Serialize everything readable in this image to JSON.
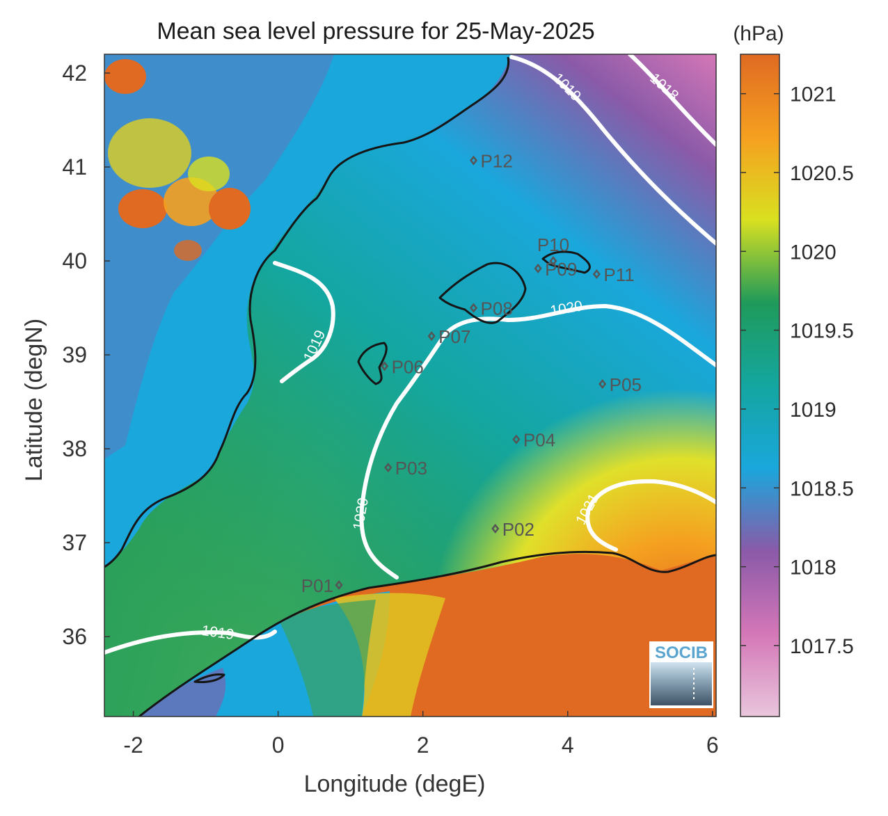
{
  "title": "Mean sea level pressure for 25-May-2025",
  "units_label": "(hPa)",
  "xlabel": "Longitude (degE)",
  "ylabel": "Latitude (degN)",
  "x_ticks": [
    "-2",
    "0",
    "2",
    "4",
    "6"
  ],
  "y_ticks": [
    "42",
    "41",
    "40",
    "39",
    "38",
    "37",
    "36"
  ],
  "colorbar": {
    "ticks": [
      "1021",
      "1020.5",
      "1020",
      "1019.5",
      "1019",
      "1018.5",
      "1018",
      "1017.5"
    ],
    "range_hpa": [
      1017.05,
      1021.25
    ],
    "colors": [
      "#e9c6dc",
      "#d477b7",
      "#8a5aa8",
      "#1aa7dc",
      "#14a6a0",
      "#1f9a5a",
      "#d9e020",
      "#f5a020",
      "#e06a22"
    ]
  },
  "logo": "SOCIB",
  "points": [
    {
      "name": "P01",
      "lon": 0.84,
      "lat": 36.55
    },
    {
      "name": "P02",
      "lon": 3.0,
      "lat": 37.15
    },
    {
      "name": "P03",
      "lon": 1.52,
      "lat": 37.8
    },
    {
      "name": "P04",
      "lon": 3.29,
      "lat": 38.1
    },
    {
      "name": "P05",
      "lon": 4.48,
      "lat": 38.69
    },
    {
      "name": "P06",
      "lon": 1.47,
      "lat": 38.88
    },
    {
      "name": "P07",
      "lon": 2.12,
      "lat": 39.2
    },
    {
      "name": "P08",
      "lon": 2.7,
      "lat": 39.5
    },
    {
      "name": "P09",
      "lon": 3.59,
      "lat": 39.92
    },
    {
      "name": "P10",
      "lon": 3.8,
      "lat": 40.0
    },
    {
      "name": "P11",
      "lon": 4.4,
      "lat": 39.86
    },
    {
      "name": "P12",
      "lon": 2.7,
      "lat": 41.07
    }
  ],
  "contour_labels": [
    "1019",
    "1019",
    "1019",
    "1018",
    "1020",
    "1020",
    "1021"
  ]
}
